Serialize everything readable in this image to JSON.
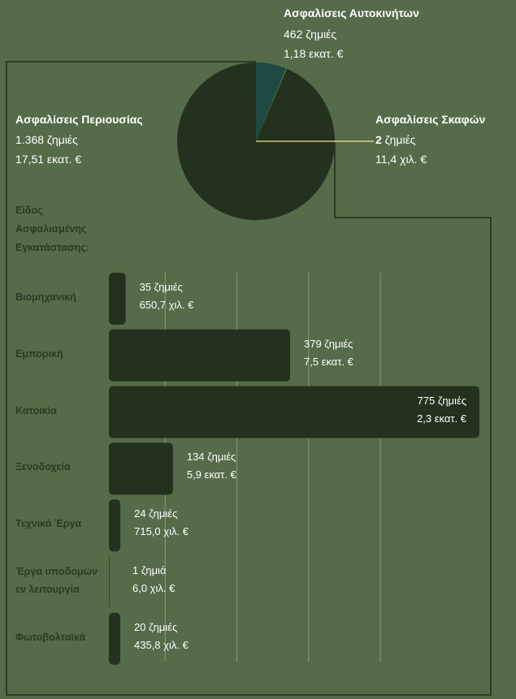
{
  "chart_data": [
    {
      "type": "pie",
      "slices": [
        {
          "label": "Ασφαλίσεις Αυτοκινήτων",
          "count": "462 ζημιές",
          "amount": "1,18 εκατ. €",
          "value": 1.18,
          "color": "#1f4a43"
        },
        {
          "label": "Ασφαλίσεις Σκαφών",
          "count_number": "2",
          "count_suffix": " ζημιές",
          "amount": "11,4 χιλ. €",
          "value": 0.0114,
          "color": "#f0e68c"
        },
        {
          "label": "Ασφαλίσεις Περιουσίας",
          "count": "1.368 ζημιές",
          "amount": "17,51 εκατ. €",
          "value": 17.51,
          "color": "#24311f"
        }
      ]
    },
    {
      "type": "bar",
      "orientation": "horizontal",
      "title": "Είδος Ασφαλισμένης Εγκατάστασης:",
      "title_lines": [
        "Είδος",
        "Ασφαλισμένης",
        "Εγκατάστασης:"
      ],
      "categories": [
        {
          "label_lines": [
            "Βιομηχανική"
          ],
          "value": 35,
          "count": "35 ζημιές",
          "amount": "650,7 χιλ. €"
        },
        {
          "label_lines": [
            "Εμπορική"
          ],
          "value": 379,
          "count": "379 ζημιές",
          "amount": "7,5 εκατ. €"
        },
        {
          "label_lines": [
            "Κατοικία"
          ],
          "value": 775,
          "count": "775 ζημιές",
          "amount": "2,3 εκατ. €"
        },
        {
          "label_lines": [
            "Ξενοδοχεία"
          ],
          "value": 134,
          "count": "134 ζημιές",
          "amount": "5,9 εκατ. €"
        },
        {
          "label_lines": [
            "Τεχνικά Έργα"
          ],
          "value": 24,
          "count": "24 ζημιές",
          "amount": "715,0 χιλ. €"
        },
        {
          "label_lines": [
            "Έργα υποδομών",
            "εν λειτουργία"
          ],
          "value": 1,
          "count": "1 ζημιά",
          "amount": "6,0 χιλ. €"
        },
        {
          "label_lines": [
            "Φωτοβολταϊκά"
          ],
          "value": 20,
          "count": "20 ζημιές",
          "amount": "435,8 χιλ. €"
        }
      ],
      "xlim": [
        0,
        800
      ],
      "grid": true,
      "bar_color": "#24311f"
    }
  ],
  "colors": {
    "background": "#556b49",
    "dark": "#24311f",
    "teal": "#1f4a43",
    "grid": "#8a9a82",
    "category_text": "#2c3a26"
  }
}
